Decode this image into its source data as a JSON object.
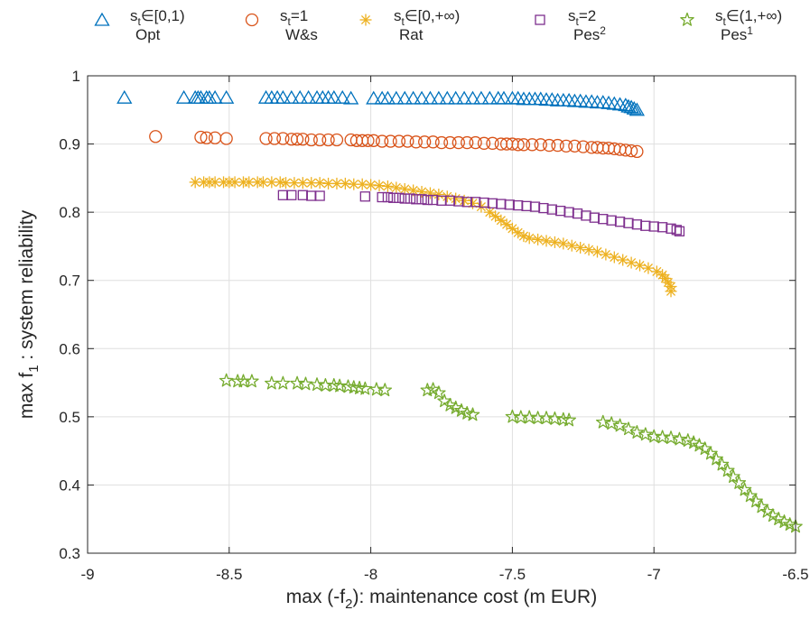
{
  "chart_data": {
    "type": "scatter",
    "xlabel": "max (-f",
    "xlabel_sub": "2",
    "xlabel_post": "): maintenance cost (m EUR)",
    "ylabel": "max f",
    "ylabel_sub": "1",
    "ylabel_post": " : system reliability",
    "xlim": [
      -9,
      -6.5
    ],
    "ylim": [
      0.3,
      1.0
    ],
    "xticks": [
      -9,
      -8.5,
      -8,
      -7.5,
      -7,
      -6.5
    ],
    "xtick_labels": [
      "-9",
      "-8.5",
      "-8",
      "-7.5",
      "-7",
      "-6.5"
    ],
    "yticks": [
      0.3,
      0.4,
      0.5,
      0.6,
      0.7,
      0.8,
      0.9,
      1.0
    ],
    "ytick_labels": [
      "0.3",
      "0.4",
      "0.5",
      "0.6",
      "0.7",
      "0.8",
      "0.9",
      "1"
    ],
    "grid": true,
    "legend_position": "top",
    "series": [
      {
        "name": "Opt",
        "legend_line1": "s∈[0,1)",
        "legend_line1_sub": "t",
        "legend_line2": "Opt",
        "legend_line2_sup": "",
        "marker": "triangle",
        "color": "#0072BD",
        "x": [
          -8.87,
          -8.66,
          -8.62,
          -8.61,
          -8.6,
          -8.58,
          -8.57,
          -8.55,
          -8.51,
          -8.37,
          -8.35,
          -8.33,
          -8.31,
          -8.28,
          -8.25,
          -8.22,
          -8.19,
          -8.17,
          -8.15,
          -8.13,
          -8.1,
          -8.07,
          -7.99,
          -7.96,
          -7.94,
          -7.91,
          -7.88,
          -7.85,
          -7.82,
          -7.79,
          -7.76,
          -7.73,
          -7.7,
          -7.67,
          -7.64,
          -7.61,
          -7.58,
          -7.55,
          -7.53,
          -7.5,
          -7.48,
          -7.46,
          -7.44,
          -7.42,
          -7.4,
          -7.38,
          -7.36,
          -7.34,
          -7.32,
          -7.3,
          -7.28,
          -7.26,
          -7.24,
          -7.22,
          -7.2,
          -7.18,
          -7.16,
          -7.14,
          -7.12,
          -7.1,
          -7.09,
          -7.08,
          -7.07,
          -7.06
        ],
        "y": [
          0.968,
          0.968,
          0.968,
          0.968,
          0.968,
          0.968,
          0.968,
          0.968,
          0.968,
          0.968,
          0.968,
          0.968,
          0.968,
          0.968,
          0.968,
          0.968,
          0.968,
          0.968,
          0.968,
          0.968,
          0.968,
          0.967,
          0.967,
          0.967,
          0.967,
          0.967,
          0.967,
          0.967,
          0.967,
          0.967,
          0.967,
          0.967,
          0.967,
          0.967,
          0.967,
          0.967,
          0.967,
          0.967,
          0.967,
          0.967,
          0.967,
          0.966,
          0.966,
          0.966,
          0.966,
          0.965,
          0.965,
          0.964,
          0.964,
          0.964,
          0.963,
          0.963,
          0.962,
          0.962,
          0.961,
          0.961,
          0.96,
          0.959,
          0.958,
          0.957,
          0.955,
          0.954,
          0.952,
          0.95
        ]
      },
      {
        "name": "W&s",
        "legend_line1": "s=1",
        "legend_line1_sub": "t",
        "legend_line2": "W&s",
        "legend_line2_sup": "",
        "marker": "circle",
        "color": "#D95319",
        "x": [
          -8.76,
          -8.6,
          -8.58,
          -8.55,
          -8.51,
          -8.37,
          -8.34,
          -8.31,
          -8.28,
          -8.26,
          -8.24,
          -8.21,
          -8.18,
          -8.15,
          -8.12,
          -8.07,
          -8.05,
          -8.03,
          -8.01,
          -7.99,
          -7.96,
          -7.93,
          -7.9,
          -7.87,
          -7.84,
          -7.81,
          -7.78,
          -7.75,
          -7.72,
          -7.69,
          -7.66,
          -7.63,
          -7.6,
          -7.57,
          -7.54,
          -7.52,
          -7.5,
          -7.48,
          -7.46,
          -7.43,
          -7.4,
          -7.37,
          -7.34,
          -7.31,
          -7.28,
          -7.25,
          -7.22,
          -7.2,
          -7.18,
          -7.16,
          -7.14,
          -7.12,
          -7.1,
          -7.08,
          -7.06
        ],
        "y": [
          0.911,
          0.91,
          0.909,
          0.909,
          0.908,
          0.908,
          0.908,
          0.908,
          0.907,
          0.907,
          0.907,
          0.906,
          0.906,
          0.906,
          0.906,
          0.906,
          0.905,
          0.905,
          0.905,
          0.905,
          0.904,
          0.904,
          0.904,
          0.904,
          0.903,
          0.903,
          0.903,
          0.902,
          0.902,
          0.902,
          0.902,
          0.902,
          0.901,
          0.901,
          0.9,
          0.9,
          0.9,
          0.899,
          0.899,
          0.899,
          0.899,
          0.898,
          0.898,
          0.897,
          0.897,
          0.896,
          0.895,
          0.895,
          0.894,
          0.894,
          0.893,
          0.892,
          0.891,
          0.89,
          0.889
        ]
      },
      {
        "name": "Rat",
        "legend_line1": "s∈[0,+∞)",
        "legend_line1_sub": "t",
        "legend_line2": "Rat",
        "legend_line2_sup": "",
        "marker": "asterisk",
        "color": "#EDB120",
        "x": [
          -8.62,
          -8.59,
          -8.57,
          -8.55,
          -8.52,
          -8.5,
          -8.48,
          -8.45,
          -8.43,
          -8.4,
          -8.38,
          -8.35,
          -8.32,
          -8.3,
          -8.27,
          -8.24,
          -8.21,
          -8.18,
          -8.15,
          -8.12,
          -8.09,
          -8.06,
          -8.03,
          -8.0,
          -7.97,
          -7.94,
          -7.91,
          -7.88,
          -7.85,
          -7.82,
          -7.79,
          -7.76,
          -7.73,
          -7.7,
          -7.67,
          -7.64,
          -7.61,
          -7.58,
          -7.56,
          -7.54,
          -7.52,
          -7.5,
          -7.48,
          -7.46,
          -7.44,
          -7.41,
          -7.38,
          -7.35,
          -7.32,
          -7.29,
          -7.26,
          -7.23,
          -7.2,
          -7.17,
          -7.14,
          -7.11,
          -7.08,
          -7.05,
          -7.02,
          -6.99,
          -6.97,
          -6.96,
          -6.95,
          -6.94,
          -6.94
        ],
        "y": [
          0.844,
          0.844,
          0.844,
          0.844,
          0.844,
          0.844,
          0.844,
          0.844,
          0.844,
          0.844,
          0.844,
          0.844,
          0.844,
          0.843,
          0.843,
          0.843,
          0.843,
          0.843,
          0.842,
          0.842,
          0.842,
          0.841,
          0.841,
          0.84,
          0.839,
          0.838,
          0.836,
          0.834,
          0.832,
          0.83,
          0.828,
          0.826,
          0.823,
          0.82,
          0.817,
          0.813,
          0.808,
          0.8,
          0.794,
          0.788,
          0.782,
          0.776,
          0.77,
          0.765,
          0.762,
          0.76,
          0.758,
          0.756,
          0.754,
          0.751,
          0.748,
          0.745,
          0.742,
          0.738,
          0.734,
          0.73,
          0.726,
          0.722,
          0.718,
          0.713,
          0.708,
          0.703,
          0.697,
          0.691,
          0.684
        ]
      },
      {
        "name": "Pes²",
        "legend_line1": "s=2",
        "legend_line1_sub": "t",
        "legend_line2": "Pes",
        "legend_line2_sup": "2",
        "marker": "square",
        "color": "#7E2F8E",
        "x": [
          -8.31,
          -8.28,
          -8.24,
          -8.21,
          -8.18,
          -8.02,
          -7.96,
          -7.94,
          -7.92,
          -7.9,
          -7.88,
          -7.86,
          -7.84,
          -7.82,
          -7.8,
          -7.78,
          -7.75,
          -7.72,
          -7.69,
          -7.66,
          -7.63,
          -7.6,
          -7.57,
          -7.54,
          -7.51,
          -7.48,
          -7.45,
          -7.42,
          -7.39,
          -7.36,
          -7.33,
          -7.3,
          -7.27,
          -7.24,
          -7.21,
          -7.18,
          -7.15,
          -7.12,
          -7.09,
          -7.06,
          -7.03,
          -7.0,
          -6.97,
          -6.94,
          -6.92,
          -6.91
        ],
        "y": [
          0.825,
          0.825,
          0.825,
          0.824,
          0.824,
          0.823,
          0.822,
          0.822,
          0.821,
          0.821,
          0.82,
          0.82,
          0.819,
          0.819,
          0.818,
          0.818,
          0.817,
          0.817,
          0.816,
          0.815,
          0.815,
          0.814,
          0.813,
          0.812,
          0.811,
          0.81,
          0.809,
          0.808,
          0.806,
          0.804,
          0.802,
          0.8,
          0.798,
          0.795,
          0.792,
          0.79,
          0.788,
          0.786,
          0.784,
          0.782,
          0.78,
          0.779,
          0.778,
          0.776,
          0.774,
          0.772
        ]
      },
      {
        "name": "Pes¹",
        "legend_line1": "s∈(1,+∞)",
        "legend_line1_sub": "t",
        "legend_line2": "Pes",
        "legend_line2_sup": "1",
        "marker": "star",
        "color": "#77AC30",
        "x": [
          -8.51,
          -8.47,
          -8.45,
          -8.42,
          -8.35,
          -8.31,
          -8.26,
          -8.23,
          -8.19,
          -8.16,
          -8.13,
          -8.11,
          -8.08,
          -8.06,
          -8.04,
          -8.02,
          -7.98,
          -7.95,
          -7.8,
          -7.78,
          -7.76,
          -7.74,
          -7.72,
          -7.7,
          -7.68,
          -7.66,
          -7.64,
          -7.5,
          -7.47,
          -7.44,
          -7.41,
          -7.38,
          -7.35,
          -7.32,
          -7.3,
          -7.18,
          -7.15,
          -7.12,
          -7.09,
          -7.06,
          -7.03,
          -7.0,
          -6.97,
          -6.94,
          -6.91,
          -6.88,
          -6.86,
          -6.84,
          -6.82,
          -6.8,
          -6.78,
          -6.76,
          -6.74,
          -6.72,
          -6.7,
          -6.68,
          -6.66,
          -6.64,
          -6.62,
          -6.6,
          -6.58,
          -6.56,
          -6.54,
          -6.52,
          -6.5
        ],
        "y": [
          0.553,
          0.552,
          0.552,
          0.552,
          0.549,
          0.549,
          0.549,
          0.548,
          0.547,
          0.546,
          0.546,
          0.545,
          0.544,
          0.543,
          0.542,
          0.541,
          0.54,
          0.539,
          0.539,
          0.54,
          0.535,
          0.523,
          0.517,
          0.513,
          0.509,
          0.505,
          0.503,
          0.5,
          0.499,
          0.499,
          0.498,
          0.498,
          0.497,
          0.496,
          0.495,
          0.492,
          0.49,
          0.487,
          0.482,
          0.477,
          0.474,
          0.471,
          0.47,
          0.469,
          0.467,
          0.465,
          0.462,
          0.458,
          0.453,
          0.446,
          0.438,
          0.43,
          0.421,
          0.412,
          0.403,
          0.393,
          0.384,
          0.376,
          0.368,
          0.361,
          0.355,
          0.35,
          0.346,
          0.342,
          0.339
        ]
      }
    ]
  }
}
